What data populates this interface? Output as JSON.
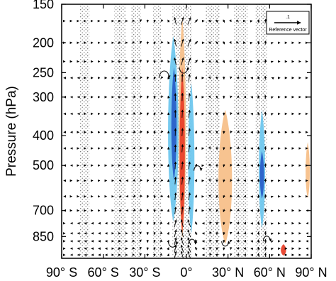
{
  "chart_data": {
    "type": "vector-field",
    "ylabel": "Pressure (hPa)",
    "xlabel": "",
    "x_ticks": [
      {
        "value": -90,
        "label": "90° S"
      },
      {
        "value": -60,
        "label": "60° S"
      },
      {
        "value": -30,
        "label": "30° S"
      },
      {
        "value": 0,
        "label": "0°"
      },
      {
        "value": 30,
        "label": "30° N"
      },
      {
        "value": 60,
        "label": "60° N"
      },
      {
        "value": 90,
        "label": "90° N"
      }
    ],
    "y_ticks": [
      {
        "value": 150,
        "label": "150"
      },
      {
        "value": 200,
        "label": "200"
      },
      {
        "value": 250,
        "label": "250"
      },
      {
        "value": 300,
        "label": "300"
      },
      {
        "value": 400,
        "label": "400"
      },
      {
        "value": 500,
        "label": "500"
      },
      {
        "value": 700,
        "label": "700"
      },
      {
        "value": 850,
        "label": "850"
      }
    ],
    "xlim": [
      -90,
      90
    ],
    "ylim": [
      1000,
      150
    ],
    "y_scale": "log",
    "grid": false,
    "legend": {
      "position": "top-right",
      "reference_value": ".1",
      "reference_label": "Reference vector"
    },
    "colors": {
      "strong_positive": "#e8402a",
      "weak_positive": "#f7c08a",
      "strong_negative": "#2a5fc8",
      "weak_negative": "#6fc7ee",
      "stipple": "#555555",
      "vectors": "#000000"
    },
    "shaded_regions": [
      {
        "kind": "weak_negative",
        "lat": [
          -14,
          -5
        ],
        "p": [
          190,
          760
        ]
      },
      {
        "kind": "strong_negative",
        "lat": [
          -11,
          -7
        ],
        "p": [
          240,
          560
        ]
      },
      {
        "kind": "weak_positive",
        "lat": [
          -6,
          0
        ],
        "p": [
          165,
          860
        ]
      },
      {
        "kind": "strong_positive",
        "lat": [
          -5,
          -1
        ],
        "p": [
          240,
          830
        ]
      },
      {
        "kind": "weak_negative",
        "lat": [
          1,
          6
        ],
        "p": [
          270,
          830
        ]
      },
      {
        "kind": "weak_positive",
        "lat": [
          22,
          34
        ],
        "p": [
          330,
          900
        ]
      },
      {
        "kind": "weak_negative",
        "lat": [
          52,
          57
        ],
        "p": [
          330,
          800
        ]
      },
      {
        "kind": "strong_negative",
        "lat": [
          53,
          56
        ],
        "p": [
          450,
          640
        ]
      },
      {
        "kind": "strong_positive",
        "lat": [
          68,
          72
        ],
        "p": [
          900,
          980
        ]
      },
      {
        "kind": "weak_positive",
        "lat": [
          86,
          89
        ],
        "p": [
          420,
          640
        ]
      }
    ],
    "stippled_bands": [
      {
        "lat": [
          -77,
          -70
        ],
        "p": [
          150,
          1000
        ]
      },
      {
        "lat": [
          -52,
          -44
        ],
        "p": [
          150,
          1000
        ]
      },
      {
        "lat": [
          -40,
          -33
        ],
        "p": [
          150,
          1000
        ]
      },
      {
        "lat": [
          -24,
          -18
        ],
        "p": [
          150,
          1000
        ]
      },
      {
        "lat": [
          -10,
          4
        ],
        "p": [
          150,
          1000
        ]
      },
      {
        "lat": [
          14,
          24
        ],
        "p": [
          150,
          1000
        ]
      },
      {
        "lat": [
          34,
          44
        ],
        "p": [
          150,
          1000
        ]
      },
      {
        "lat": [
          50,
          58
        ],
        "p": [
          150,
          1000
        ]
      }
    ]
  }
}
